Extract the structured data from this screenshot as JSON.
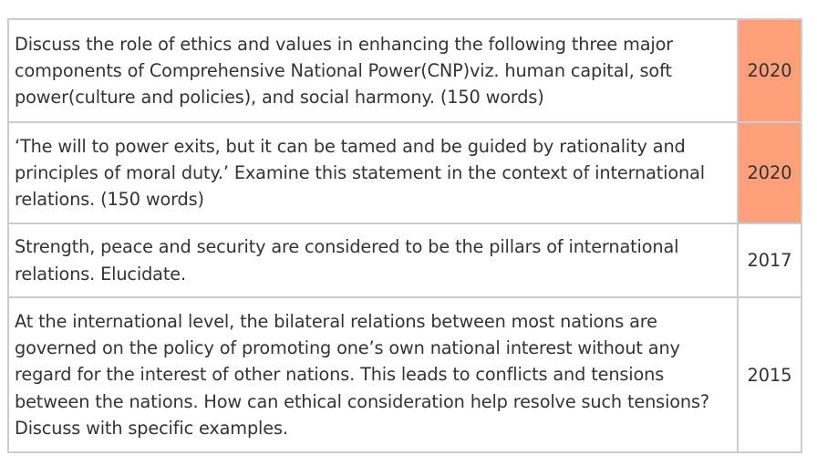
{
  "highlight_color": "#ffa07a",
  "rows": [
    {
      "question": "Discuss the role of ethics and values in enhancing the following three major components of Comprehensive National Power(CNP)viz. human capital, soft power(culture and policies), and social harmony. (150 words)",
      "year": "2020",
      "highlighted": true
    },
    {
      "question": "‘The will to power exits, but it can be tamed and be guided by rationality and principles of moral duty.’ Examine this statement in the context of international relations. (150 words)",
      "year": "2020",
      "highlighted": true
    },
    {
      "question": "Strength, peace and security are considered to be the pillars of international relations. Elucidate.",
      "year": "2017",
      "highlighted": false
    },
    {
      "question": "At the international level, the bilateral relations between most nations are governed on the policy of promoting one’s own national interest without any regard for the interest of other nations. This leads to conflicts and tensions between the nations. How can ethical consideration help resolve such tensions? Discuss with specific examples.",
      "year": "2015",
      "highlighted": false
    }
  ]
}
